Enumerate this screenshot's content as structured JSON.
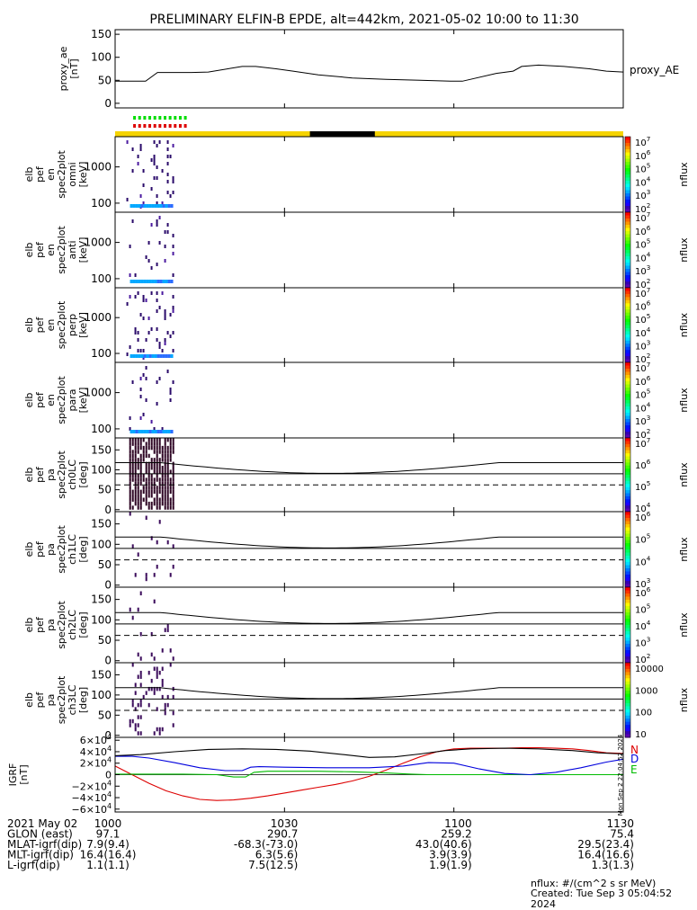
{
  "title": "PRELIMINARY ELFIN-B EPDE, alt=442km, 2021-05-02 10:00 to 11:30",
  "time_range": {
    "start": "10:00",
    "end": "11:30"
  },
  "x_ticks": [
    "1000",
    "1030",
    "1100",
    "1130"
  ],
  "colors": {
    "sunlit_bar": "#f5d300",
    "shadow_bar": "#000000",
    "green_marker": "#00dd00",
    "red_marker": "#dd0000"
  },
  "chart_data": [
    {
      "type": "line",
      "panel": "proxy_ae",
      "ylabel": "proxy_ae\n[nT]",
      "legend": "proxy_AE",
      "ylim": [
        -10,
        160
      ],
      "y_ticks": [
        "150",
        "100",
        "50",
        "0"
      ],
      "x_minutes": [
        0,
        18,
        25,
        45,
        55,
        75,
        83,
        95,
        105,
        120,
        140,
        160,
        180,
        198,
        205,
        225,
        235,
        240,
        250,
        265,
        280,
        290,
        300
      ],
      "values": [
        48,
        48,
        67,
        67,
        68,
        80,
        80,
        75,
        70,
        62,
        55,
        52,
        50,
        48,
        48,
        65,
        70,
        80,
        83,
        80,
        75,
        70,
        68
      ]
    },
    {
      "type": "heatmap",
      "panel": "omni",
      "ylabel": "elb\npef\nen\nspec2plot\nomni\n[keV]",
      "y_ticks": [
        "1000",
        "100"
      ],
      "zlabel": "nflux",
      "colorbar_ticks": [
        "10^7",
        "10^6",
        "10^5",
        "10^4",
        "10^3",
        "10^2"
      ]
    },
    {
      "type": "heatmap",
      "panel": "anti",
      "ylabel": "elb\npef\nen\nspec2plot\nanti\n[keV]",
      "y_ticks": [
        "1000",
        "100"
      ],
      "zlabel": "nflux",
      "colorbar_ticks": [
        "10^7",
        "10^6",
        "10^5",
        "10^4",
        "10^3",
        "10^2"
      ]
    },
    {
      "type": "heatmap",
      "panel": "perp",
      "ylabel": "elb\npef\nen\nspec2plot\nperp\n[keV]",
      "y_ticks": [
        "1000",
        "100"
      ],
      "zlabel": "nflux",
      "colorbar_ticks": [
        "10^7",
        "10^6",
        "10^5",
        "10^4",
        "10^3",
        "10^2"
      ]
    },
    {
      "type": "heatmap",
      "panel": "para",
      "ylabel": "elb\npef\nen\nspec2plot\npara\n[keV]",
      "y_ticks": [
        "1000",
        "100"
      ],
      "zlabel": "nflux",
      "colorbar_ticks": [
        "10^7",
        "10^6",
        "10^5",
        "10^4",
        "10^3",
        "10^2"
      ]
    },
    {
      "type": "heatmap",
      "panel": "ch0LC",
      "ylabel": "elb\npef\npa\nspec2plot\nch0LC\n[deg]",
      "y_ticks": [
        "150",
        "100",
        "50",
        "0"
      ],
      "zlabel": "nflux",
      "colorbar_ticks": [
        "10^7",
        "10^6",
        "10^5",
        "10^4"
      ]
    },
    {
      "type": "heatmap",
      "panel": "ch1LC",
      "ylabel": "elb\npef\npa\nspec2plot\nch1LC\n[deg]",
      "y_ticks": [
        "150",
        "100",
        "50",
        "0"
      ],
      "zlabel": "nflux",
      "colorbar_ticks": [
        "10^6",
        "10^5",
        "10^4",
        "10^3"
      ]
    },
    {
      "type": "heatmap",
      "panel": "ch2LC",
      "ylabel": "elb\npef\npa\nspec2plot\nch2LC\n[deg]",
      "y_ticks": [
        "150",
        "100",
        "50",
        "0"
      ],
      "zlabel": "nflux",
      "colorbar_ticks": [
        "10^6",
        "10^5",
        "10^4",
        "10^3",
        "10^2"
      ]
    },
    {
      "type": "heatmap",
      "panel": "ch3LC",
      "ylabel": "elb\npef\npa\nspec2plot\nch3LC\n[deg]",
      "y_ticks": [
        "150",
        "100",
        "50",
        "0"
      ],
      "zlabel": "nflux",
      "colorbar_ticks": [
        "10000",
        "1000",
        "100",
        "10"
      ]
    },
    {
      "type": "line",
      "panel": "igrf",
      "ylabel": "IGRF\n[nT]",
      "ylim": [
        -65000,
        65000
      ],
      "y_ticks": [
        "6×10^4",
        "4×10^4",
        "2×10^4",
        "0",
        "−2×10^4",
        "−4×10^4",
        "−6×10^4"
      ],
      "legend": [
        "N",
        "E",
        "D"
      ],
      "series": [
        {
          "name": "N",
          "color": "#dd0000",
          "x_minutes": [
            0,
            10,
            20,
            30,
            40,
            50,
            60,
            70,
            80,
            90,
            100,
            110,
            120,
            130,
            140,
            150,
            160,
            170,
            180,
            190,
            200,
            210,
            220,
            230,
            240,
            250,
            260,
            270,
            280,
            290,
            300
          ],
          "values": [
            15000,
            0,
            -15000,
            -28000,
            -37000,
            -43000,
            -45000,
            -44000,
            -41000,
            -37000,
            -32000,
            -27000,
            -22000,
            -17000,
            -11000,
            -3000,
            8000,
            20000,
            31000,
            40000,
            45000,
            46000,
            46000,
            46000,
            47000,
            47000,
            46000,
            45000,
            42000,
            38000,
            37000
          ]
        },
        {
          "name": "E",
          "color": "#00bb00",
          "x_minutes": [
            0,
            20,
            40,
            60,
            70,
            77,
            82,
            90,
            100,
            120,
            140,
            160,
            175,
            185,
            200,
            240,
            300
          ],
          "values": [
            1000,
            1000,
            1000,
            0,
            -4000,
            -4000,
            4000,
            6000,
            6000,
            6000,
            5000,
            3000,
            1000,
            0,
            0,
            0,
            0
          ]
        },
        {
          "name": "D",
          "color": "#0000dd",
          "x_minutes": [
            0,
            10,
            20,
            35,
            50,
            65,
            75,
            80,
            85,
            100,
            125,
            150,
            170,
            185,
            200,
            215,
            230,
            245,
            260,
            275,
            290,
            300
          ],
          "values": [
            32000,
            32000,
            29000,
            21000,
            12000,
            7000,
            7000,
            13000,
            14000,
            13000,
            12000,
            12000,
            15000,
            21000,
            20000,
            10000,
            2000,
            0,
            4000,
            12000,
            22000,
            27000
          ]
        },
        {
          "name": "total",
          "color": "#000000",
          "x_minutes": [
            0,
            15,
            35,
            55,
            75,
            95,
            115,
            135,
            150,
            165,
            180,
            195,
            210,
            230,
            250,
            270,
            285,
            300
          ],
          "values": [
            33000,
            35000,
            40000,
            44000,
            45000,
            44000,
            41000,
            35000,
            30000,
            31000,
            36000,
            42000,
            45000,
            46000,
            45000,
            42000,
            38000,
            36000
          ]
        }
      ]
    }
  ],
  "footer": {
    "row_labels": [
      "2021 May 02",
      "GLON (east)",
      "MLAT-igrf(dip)",
      "MLT-igrf(dip)",
      "L-igrf(dip)"
    ],
    "columns": [
      [
        "1000",
        "97.1",
        "7.9(9.4)",
        "16.4(16.4)",
        "1.1(1.1)"
      ],
      [
        "1030",
        "290.7",
        "-68.3(-73.0)",
        "6.3(5.6)",
        "7.5(12.5)"
      ],
      [
        "1100",
        "259.2",
        "43.0(40.6)",
        "3.9(3.9)",
        "1.9(1.9)"
      ],
      [
        "1130",
        "75.4",
        "29.5(23.4)",
        "16.4(16.6)",
        "1.3(1.3)"
      ]
    ],
    "units_note": "nflux: #/(cm^2 s sr MeV)",
    "created": "Created: Tue Sep  3 05:04:52 2024",
    "side_stamp": "Mon Sep 2 22:04:52 2024"
  }
}
